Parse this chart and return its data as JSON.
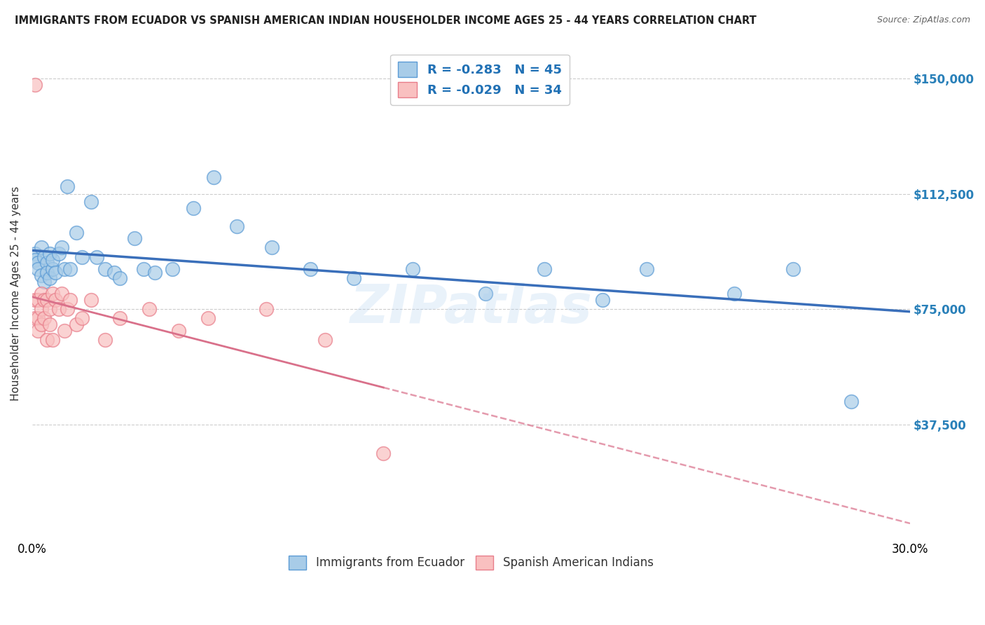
{
  "title": "IMMIGRANTS FROM ECUADOR VS SPANISH AMERICAN INDIAN HOUSEHOLDER INCOME AGES 25 - 44 YEARS CORRELATION CHART",
  "source": "Source: ZipAtlas.com",
  "ylabel": "Householder Income Ages 25 - 44 years",
  "xlim": [
    0.0,
    0.3
  ],
  "ylim": [
    0,
    160000
  ],
  "yticks": [
    0,
    37500,
    75000,
    112500,
    150000
  ],
  "ytick_labels": [
    "",
    "$37,500",
    "$75,000",
    "$112,500",
    "$150,000"
  ],
  "xtick_positions": [
    0.0,
    0.05,
    0.1,
    0.15,
    0.2,
    0.25,
    0.3
  ],
  "xtick_labels": [
    "0.0%",
    "",
    "",
    "",
    "",
    "",
    "30.0%"
  ],
  "r_ecuador": -0.283,
  "n_ecuador": 45,
  "r_spanish": -0.029,
  "n_spanish": 34,
  "color_ecuador": "#a8cce8",
  "color_spanish": "#f9c0c0",
  "edge_color_ecuador": "#5b9bd5",
  "edge_color_spanish": "#e87d8a",
  "line_color_ecuador": "#3a6fba",
  "line_color_spanish": "#d9708a",
  "background_color": "#ffffff",
  "ecuador_x": [
    0.001,
    0.001,
    0.002,
    0.002,
    0.003,
    0.003,
    0.004,
    0.004,
    0.005,
    0.005,
    0.006,
    0.006,
    0.007,
    0.007,
    0.008,
    0.009,
    0.01,
    0.011,
    0.012,
    0.013,
    0.015,
    0.017,
    0.02,
    0.022,
    0.025,
    0.028,
    0.03,
    0.035,
    0.038,
    0.042,
    0.048,
    0.055,
    0.062,
    0.07,
    0.082,
    0.095,
    0.11,
    0.13,
    0.155,
    0.175,
    0.195,
    0.21,
    0.24,
    0.26,
    0.28
  ],
  "ecuador_y": [
    93000,
    91000,
    90000,
    88000,
    95000,
    86000,
    92000,
    84000,
    90000,
    87000,
    93000,
    85000,
    88000,
    91000,
    87000,
    93000,
    95000,
    88000,
    115000,
    88000,
    100000,
    92000,
    110000,
    92000,
    88000,
    87000,
    85000,
    98000,
    88000,
    87000,
    88000,
    108000,
    118000,
    102000,
    95000,
    88000,
    85000,
    88000,
    80000,
    88000,
    78000,
    88000,
    80000,
    88000,
    45000
  ],
  "spanish_x": [
    0.001,
    0.001,
    0.001,
    0.002,
    0.002,
    0.002,
    0.003,
    0.003,
    0.003,
    0.004,
    0.004,
    0.005,
    0.005,
    0.006,
    0.006,
    0.007,
    0.007,
    0.008,
    0.009,
    0.01,
    0.011,
    0.012,
    0.013,
    0.015,
    0.017,
    0.02,
    0.025,
    0.03,
    0.04,
    0.05,
    0.06,
    0.08,
    0.1,
    0.12
  ],
  "spanish_y": [
    148000,
    78000,
    72000,
    78000,
    72000,
    68000,
    80000,
    75000,
    70000,
    78000,
    72000,
    78000,
    65000,
    75000,
    70000,
    80000,
    65000,
    78000,
    75000,
    80000,
    68000,
    75000,
    78000,
    70000,
    72000,
    78000,
    65000,
    72000,
    75000,
    68000,
    72000,
    75000,
    65000,
    28000
  ]
}
